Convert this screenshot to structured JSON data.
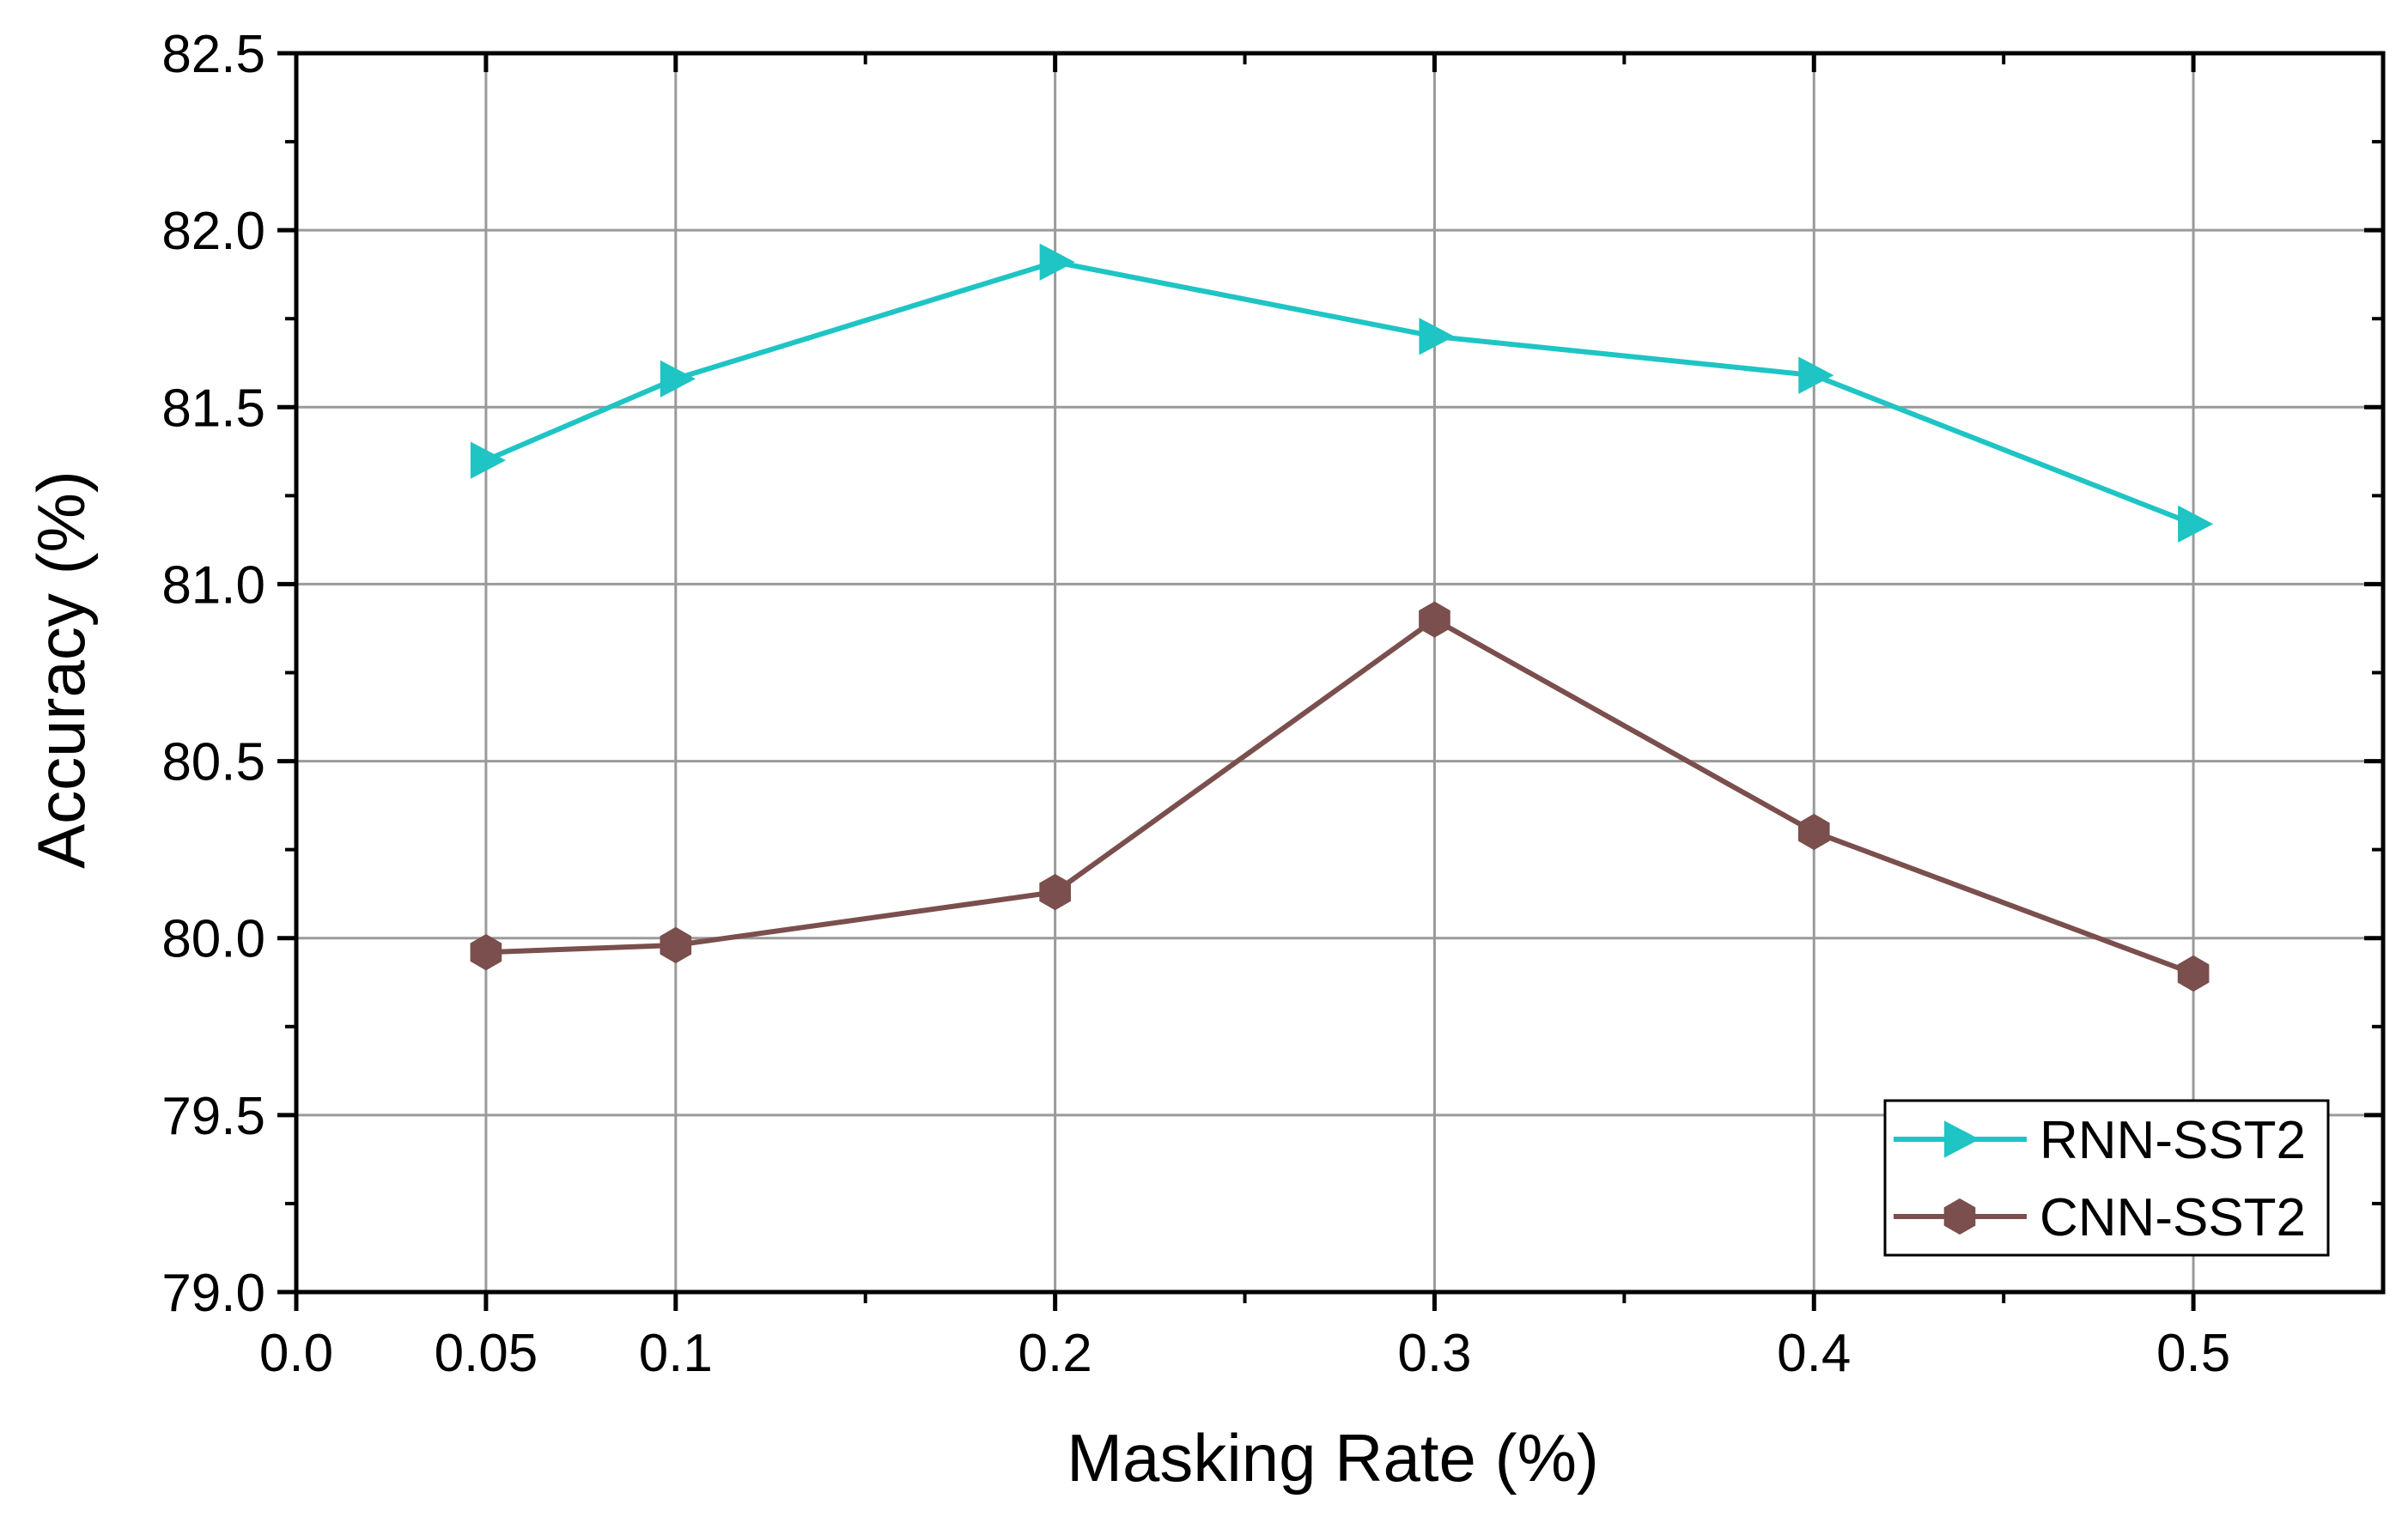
{
  "chart_data": {
    "type": "line",
    "title": "",
    "xlabel": "Masking Rate (%)",
    "ylabel": "Accuracy (%)",
    "xlim": [
      0.0,
      0.55
    ],
    "ylim": [
      79.0,
      82.5
    ],
    "x_ticks": [
      0.0,
      0.05,
      0.1,
      0.2,
      0.3,
      0.4,
      0.5
    ],
    "x_tick_labels": [
      "0.0",
      "0.05",
      "0.1",
      "0.2",
      "0.3",
      "0.4",
      "0.5"
    ],
    "x_minor_ticks": [
      0.15,
      0.25,
      0.35,
      0.45
    ],
    "y_ticks": [
      79.0,
      79.5,
      80.0,
      80.5,
      81.0,
      81.5,
      82.0,
      82.5
    ],
    "y_tick_labels": [
      "79.0",
      "79.5",
      "80.0",
      "80.5",
      "81.0",
      "81.5",
      "82.0",
      "82.5"
    ],
    "grid": true,
    "legend_position": "bottom-right",
    "x": [
      0.05,
      0.1,
      0.2,
      0.3,
      0.4,
      0.5
    ],
    "series": [
      {
        "name": "RNN-SST2",
        "color": "#1fc4c4",
        "marker": "triangle-right",
        "values": [
          81.35,
          81.58,
          81.91,
          81.7,
          81.59,
          81.17
        ]
      },
      {
        "name": "CNN-SST2",
        "color": "#7a4f4d",
        "marker": "hexagon",
        "values": [
          79.96,
          79.98,
          80.13,
          80.9,
          80.3,
          79.9
        ]
      }
    ]
  }
}
